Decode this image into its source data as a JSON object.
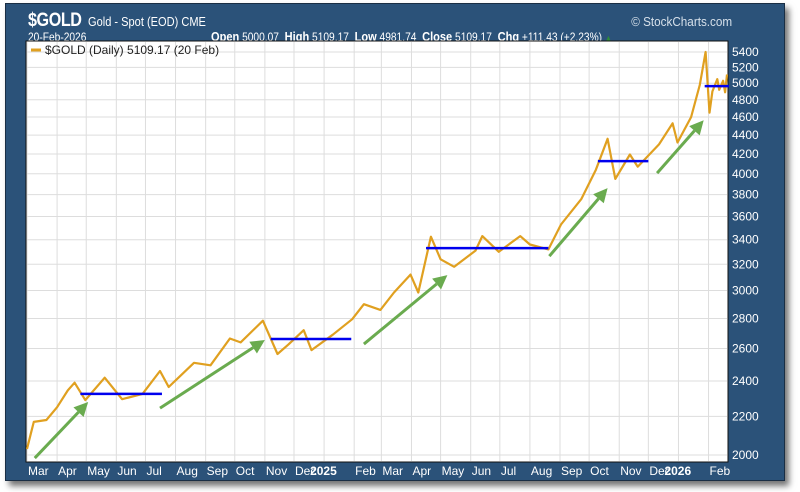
{
  "header": {
    "symbol": "$GOLD",
    "name": "Gold - Spot (EOD) CME",
    "copyright": "© StockCharts.com",
    "date": "20-Feb-2026",
    "open_label": "Open",
    "open": "5000.07",
    "high_label": "High",
    "high": "5109.17",
    "low_label": "Low",
    "low": "4981.74",
    "close_label": "Close",
    "close": "5109.17",
    "chg_label": "Chg",
    "chg": "+111.43 (+2.23%)",
    "chg_icon": "up-triangle-icon"
  },
  "chart_data": {
    "type": "line",
    "legend": "$GOLD (Daily) 5109.17 (20 Feb)",
    "legend_placement": "top-left",
    "y_scale": "log",
    "ylim": [
      2000,
      5500
    ],
    "y_axis_side": "right",
    "y_ticks": [
      2000,
      2200,
      2400,
      2600,
      2800,
      3000,
      3200,
      3400,
      3600,
      3800,
      4000,
      4200,
      4400,
      4600,
      4800,
      5000,
      5200,
      5400
    ],
    "x_range": [
      "2024-03-01",
      "2026-02-20"
    ],
    "x_ticks": [
      {
        "date": "2024-03-01",
        "label": "Mar"
      },
      {
        "date": "2024-04-01",
        "label": "Apr"
      },
      {
        "date": "2024-05-01",
        "label": "May"
      },
      {
        "date": "2024-06-01",
        "label": "Jun"
      },
      {
        "date": "2024-07-01",
        "label": "Jul"
      },
      {
        "date": "2024-08-01",
        "label": "Aug"
      },
      {
        "date": "2024-09-01",
        "label": "Sep"
      },
      {
        "date": "2024-10-01",
        "label": "Oct"
      },
      {
        "date": "2024-11-01",
        "label": "Nov"
      },
      {
        "date": "2024-12-01",
        "label": "Dec"
      },
      {
        "date": "2025-01-01",
        "label": "2025",
        "bold": true
      },
      {
        "date": "2025-02-01",
        "label": "Feb"
      },
      {
        "date": "2025-03-01",
        "label": "Mar"
      },
      {
        "date": "2025-04-01",
        "label": "Apr"
      },
      {
        "date": "2025-05-01",
        "label": "May"
      },
      {
        "date": "2025-06-01",
        "label": "Jun"
      },
      {
        "date": "2025-07-01",
        "label": "Jul"
      },
      {
        "date": "2025-08-01",
        "label": "Aug"
      },
      {
        "date": "2025-09-01",
        "label": "Sep"
      },
      {
        "date": "2025-10-01",
        "label": "Oct"
      },
      {
        "date": "2025-11-01",
        "label": "Nov"
      },
      {
        "date": "2025-12-01",
        "label": "Dec"
      },
      {
        "date": "2026-01-01",
        "label": "2026",
        "bold": true
      },
      {
        "date": "2026-02-01",
        "label": "Feb"
      }
    ],
    "grid": true,
    "series": [
      {
        "color": "#e0a020",
        "points": [
          [
            "2024-03-01",
            2030
          ],
          [
            "2024-03-05",
            2110
          ],
          [
            "2024-03-08",
            2170
          ],
          [
            "2024-03-21",
            2180
          ],
          [
            "2024-04-01",
            2250
          ],
          [
            "2024-04-12",
            2345
          ],
          [
            "2024-04-19",
            2390
          ],
          [
            "2024-04-30",
            2290
          ],
          [
            "2024-05-20",
            2420
          ],
          [
            "2024-06-07",
            2295
          ],
          [
            "2024-06-28",
            2325
          ],
          [
            "2024-07-16",
            2460
          ],
          [
            "2024-07-25",
            2365
          ],
          [
            "2024-08-20",
            2510
          ],
          [
            "2024-09-06",
            2495
          ],
          [
            "2024-09-26",
            2665
          ],
          [
            "2024-10-07",
            2640
          ],
          [
            "2024-10-30",
            2785
          ],
          [
            "2024-11-14",
            2565
          ],
          [
            "2024-11-25",
            2625
          ],
          [
            "2024-12-11",
            2720
          ],
          [
            "2024-12-19",
            2590
          ],
          [
            "2025-01-10",
            2690
          ],
          [
            "2025-01-30",
            2795
          ],
          [
            "2025-02-11",
            2900
          ],
          [
            "2025-02-28",
            2860
          ],
          [
            "2025-03-14",
            2985
          ],
          [
            "2025-03-31",
            3120
          ],
          [
            "2025-04-08",
            2985
          ],
          [
            "2025-04-21",
            3425
          ],
          [
            "2025-05-01",
            3240
          ],
          [
            "2025-05-15",
            3180
          ],
          [
            "2025-06-06",
            3310
          ],
          [
            "2025-06-13",
            3430
          ],
          [
            "2025-06-30",
            3300
          ],
          [
            "2025-07-22",
            3430
          ],
          [
            "2025-08-01",
            3360
          ],
          [
            "2025-08-20",
            3320
          ],
          [
            "2025-09-02",
            3530
          ],
          [
            "2025-09-23",
            3760
          ],
          [
            "2025-10-08",
            4040
          ],
          [
            "2025-10-20",
            4360
          ],
          [
            "2025-10-28",
            3950
          ],
          [
            "2025-11-12",
            4195
          ],
          [
            "2025-11-20",
            4070
          ],
          [
            "2025-12-12",
            4300
          ],
          [
            "2025-12-26",
            4530
          ],
          [
            "2025-12-31",
            4320
          ],
          [
            "2026-01-14",
            4600
          ],
          [
            "2026-01-23",
            4980
          ],
          [
            "2026-01-29",
            5400
          ],
          [
            "2026-02-02",
            4650
          ],
          [
            "2026-02-05",
            4900
          ],
          [
            "2026-02-10",
            5050
          ],
          [
            "2026-02-12",
            4920
          ],
          [
            "2026-02-16",
            5030
          ],
          [
            "2026-02-18",
            4890
          ],
          [
            "2026-02-20",
            5109.17
          ]
        ]
      }
    ],
    "annotations": {
      "support_lines": {
        "color": "#0000ee",
        "items": [
          {
            "from": "2024-04-25",
            "to": "2024-07-18",
            "price": 2325
          },
          {
            "from": "2024-11-07",
            "to": "2025-01-29",
            "price": 2662
          },
          {
            "from": "2025-04-16",
            "to": "2025-08-20",
            "price": 3330
          },
          {
            "from": "2025-10-10",
            "to": "2025-12-01",
            "price": 4126
          },
          {
            "from": "2026-01-28",
            "to": "2026-02-22",
            "price": 4964
          }
        ]
      },
      "arrows": {
        "color": "#6aab4f",
        "items": [
          {
            "from": [
              "2024-03-09",
              1985
            ],
            "to": [
              "2024-05-03",
              2279
            ]
          },
          {
            "from": [
              "2024-07-16",
              2245
            ],
            "to": [
              "2024-11-01",
              2655
            ]
          },
          {
            "from": [
              "2025-02-11",
              2629
            ],
            "to": [
              "2025-05-08",
              3116
            ]
          },
          {
            "from": [
              "2025-08-21",
              3265
            ],
            "to": [
              "2025-10-20",
              3861
            ]
          },
          {
            "from": [
              "2025-12-10",
              4006
            ],
            "to": [
              "2026-01-27",
              4564
            ]
          }
        ]
      }
    }
  }
}
